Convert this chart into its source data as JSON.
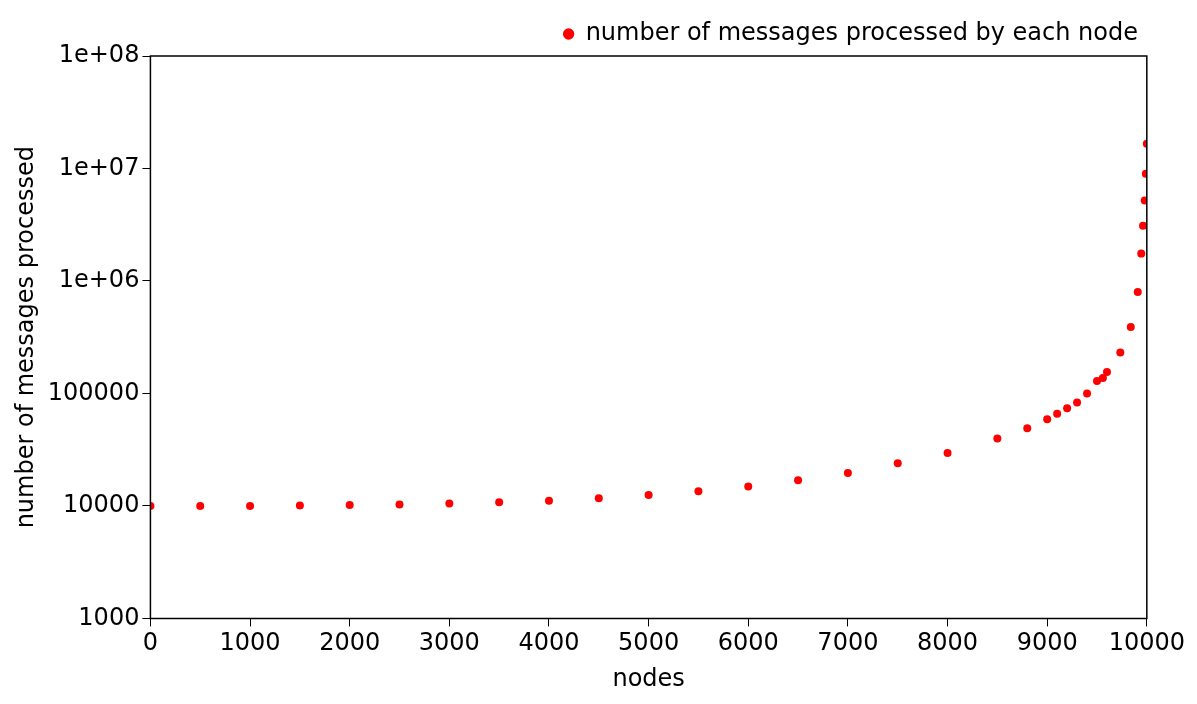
{
  "chart_data": {
    "type": "scatter",
    "xlabel": "nodes",
    "ylabel": "number of messages processed",
    "log": "y",
    "legend": "top right",
    "marker": "circle",
    "grid": false,
    "xlim": [
      0,
      10000
    ],
    "xticks": [
      0,
      1000,
      2000,
      3000,
      4000,
      5000,
      6000,
      7000,
      8000,
      9000,
      10000
    ],
    "ylim": [
      1000,
      100000000
    ],
    "yticks": [
      1000,
      10000,
      100000,
      {
        "value": 1000000,
        "label": "1e+06"
      },
      {
        "value": 10000000,
        "label": "1e+07"
      },
      {
        "value": 100000000,
        "label": "1e+08"
      }
    ],
    "series": [
      {
        "name": "number of messages processed by each node",
        "color": "#ff0000",
        "x": [
          0,
          500,
          1000,
          1500,
          2000,
          2500,
          3000,
          3500,
          4000,
          4500,
          5000,
          5500,
          6000,
          6500,
          7000,
          7500,
          8000,
          8500,
          8800,
          9000,
          9100,
          9200,
          9300,
          9400,
          9500,
          9559,
          9600,
          9734,
          9839,
          9909,
          9944,
          9962,
          9979,
          9990,
          10000
        ],
        "values": [
          10000,
          10000,
          10000,
          10100,
          10200,
          10300,
          10500,
          10800,
          11100,
          11700,
          12500,
          13500,
          14900,
          16900,
          19600,
          24000,
          29600,
          39700,
          49000,
          59000,
          66000,
          74000,
          83000,
          100000,
          129000,
          137000,
          155000,
          231000,
          390000,
          798000,
          1750000,
          3100000,
          5200000,
          9000000,
          16600000
        ]
      }
    ]
  }
}
